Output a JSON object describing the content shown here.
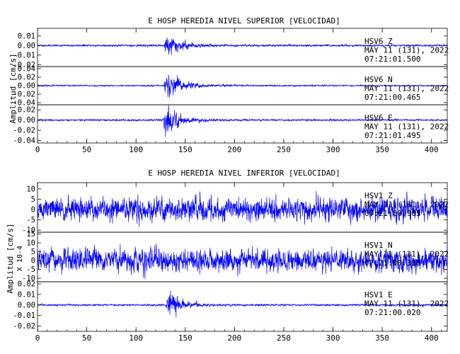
{
  "chart_data": [
    {
      "type": "line",
      "title": "E HOSP HEREDIA NIVEL SUPERIOR [VELOCIDAD]",
      "ylabel": "Amplitud [cm/s]",
      "xlim": [
        0,
        416
      ],
      "xticks": [
        0,
        50,
        100,
        150,
        200,
        250,
        300,
        350,
        400
      ],
      "trace_color": "#0000ff",
      "traces": [
        {
          "station": "HSV6",
          "component": "Z",
          "date": "MAY 11 (131), 2022",
          "time": "07:21:01.500",
          "ylim": [
            -0.022,
            0.018
          ],
          "yticks": [
            0.01,
            0.0,
            -0.01,
            -0.02
          ],
          "ytick_labels": [
            "0.01",
            "0.00",
            "-0.01",
            "-0.02"
          ],
          "noise_amp": 0.0007,
          "peak_amp": 0.0125,
          "event_onset": 128,
          "decay": 14,
          "seed": 11
        },
        {
          "station": "HSV6",
          "component": "N",
          "date": "MAY 11 (131), 2022",
          "time": "07:21:00.465",
          "ylim": [
            -0.045,
            0.045
          ],
          "yticks": [
            0.04,
            0.02,
            0.0,
            -0.02,
            -0.04
          ],
          "ytick_labels": [
            "0.04",
            "0.02",
            "0.00",
            "-0.02",
            "-0.04"
          ],
          "noise_amp": 0.0012,
          "peak_amp": 0.03,
          "event_onset": 128,
          "decay": 16,
          "seed": 23
        },
        {
          "station": "HSV6",
          "component": "E",
          "date": "MAY 11 (131), 2022",
          "time": "07:21:01.495",
          "ylim": [
            -0.045,
            0.03
          ],
          "yticks": [
            0.02,
            0.0,
            -0.02,
            -0.04
          ],
          "ytick_labels": [
            "0.02",
            "0.00",
            "-0.02",
            "-0.04"
          ],
          "noise_amp": 0.0012,
          "peak_amp": 0.025,
          "event_onset": 127,
          "decay": 15,
          "seed": 37
        }
      ]
    },
    {
      "type": "line",
      "title": "E HOSP HEREDIA NIVEL INFERIOR [VELOCIDAD]",
      "ylabel": "Amplitud [cm/s]",
      "ylabel_scale": "X 10-4",
      "xlim": [
        0,
        416
      ],
      "xticks": [
        0,
        50,
        100,
        150,
        200,
        250,
        300,
        350,
        400
      ],
      "trace_color": "#0000ff",
      "traces": [
        {
          "station": "HSV1",
          "component": "Z",
          "date": "MAY 11 (131), 2022",
          "time": "07:21:00.905",
          "ylim": [
            -11,
            13
          ],
          "yticks": [
            10,
            5,
            0,
            -5,
            -10
          ],
          "ytick_labels": [
            "10",
            "5",
            "0",
            "-5",
            "-10"
          ],
          "noise_amp": 4.2,
          "peak_amp": 0,
          "event_onset": 0,
          "decay": 1,
          "seed": 51
        },
        {
          "station": "HSV1",
          "component": "N",
          "date": "MAY 11 (131), 2022",
          "time": "07:21:00.355",
          "ylim": [
            -12,
            16
          ],
          "yticks": [
            15,
            10,
            5,
            0,
            -5,
            -10
          ],
          "ytick_labels": [
            "15",
            "10",
            "5",
            "0",
            "-5",
            "-10"
          ],
          "noise_amp": 4.6,
          "peak_amp": 0,
          "event_onset": 0,
          "decay": 1,
          "seed": 67
        },
        {
          "station": "HSV1",
          "component": "E",
          "date": "MAY 11 (131), 2022",
          "time": "07:21:00.020",
          "ylim": [
            -0.025,
            0.022
          ],
          "yticks": [
            0.02,
            0.01,
            0.0,
            -0.01,
            -0.02
          ],
          "ytick_labels": [
            "0.02",
            "0.01",
            "0.00",
            "-0.01",
            "-0.02"
          ],
          "noise_amp": 0.0006,
          "peak_amp": 0.013,
          "event_onset": 130,
          "decay": 13,
          "seed": 83
        }
      ]
    }
  ]
}
